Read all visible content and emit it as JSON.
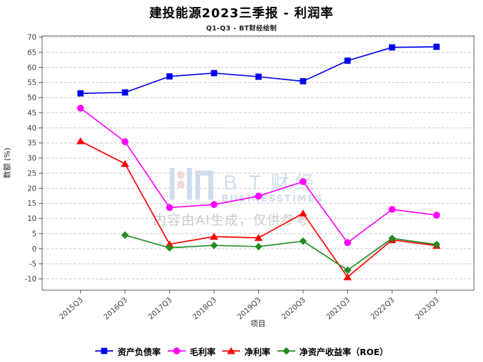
{
  "title": "建投能源2023三季报 - 利润率",
  "subtitle": "Q1-Q3 - BT财经绘制",
  "chart_data": {
    "type": "line",
    "title": "建投能源2023三季报 - 利润率",
    "subtitle": "Q1-Q3 - BT财经绘制",
    "xlabel": "项目",
    "ylabel": "数额 (%)",
    "ylim": [
      -10,
      70
    ],
    "ytick_step": 5,
    "grid": "horizontal-dashed",
    "legend_position": "bottom",
    "categories": [
      "2015Q3",
      "2016Q3",
      "2017Q3",
      "2018Q3",
      "2019Q3",
      "2020Q3",
      "2021Q3",
      "2022Q3",
      "2023Q3"
    ],
    "series": [
      {
        "name": "资产负债率",
        "marker": "square",
        "color": "#0000ee",
        "values": [
          51.4,
          51.7,
          57.0,
          58.1,
          56.9,
          55.4,
          62.2,
          66.6,
          66.8
        ]
      },
      {
        "name": "毛利率",
        "marker": "circle",
        "color": "#ff00ff",
        "values": [
          46.5,
          35.4,
          13.6,
          14.6,
          17.4,
          22.2,
          2.0,
          13.0,
          11.1
        ]
      },
      {
        "name": "净利率",
        "marker": "triangle",
        "color": "#ff0000",
        "values": [
          35.6,
          28.1,
          1.5,
          4.0,
          3.6,
          11.7,
          -9.4,
          2.9,
          1.0
        ]
      },
      {
        "name": "净资产收益率（ROE）",
        "marker": "diamond",
        "color": "#228b22",
        "values": [
          null,
          4.5,
          0.3,
          1.1,
          0.7,
          2.5,
          -7.1,
          3.4,
          1.4
        ]
      }
    ]
  },
  "watermark": {
    "brand_cn": "ＢＴ财经",
    "brand_en": "BUSINESSTIMES",
    "ai_note": "内容由AI生成，仅供参考",
    "brand_color": "#cfdcec",
    "dot_color": "#f2d8d8",
    "note_color": "#cccccc"
  },
  "axis_colors": {
    "frame": "#7f7f7f",
    "grid": "#c9c9c9",
    "tick_text": "#404040",
    "label_text": "#262626"
  }
}
